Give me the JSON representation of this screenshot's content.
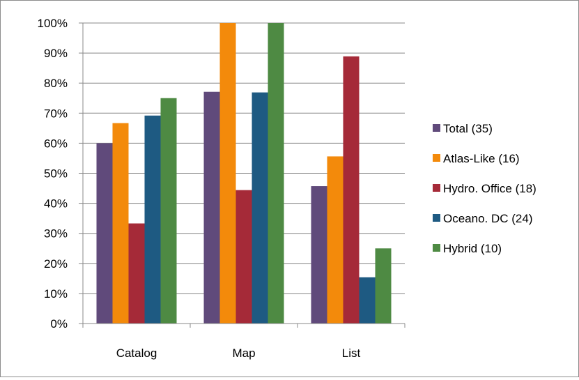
{
  "chart_data": {
    "type": "bar",
    "title": "",
    "xlabel": "",
    "ylabel": "",
    "categories": [
      "Catalog",
      "Map",
      "List"
    ],
    "ylim": [
      0,
      100
    ],
    "y_ticks": [
      "0%",
      "10%",
      "20%",
      "30%",
      "40%",
      "50%",
      "60%",
      "70%",
      "80%",
      "90%",
      "100%"
    ],
    "grid": true,
    "legend_position": "right",
    "series": [
      {
        "name": "Total (35)",
        "color": "#604a7b",
        "values": [
          60,
          77.1,
          45.7
        ]
      },
      {
        "name": "Atlas-Like (16)",
        "color": "#f38a0b",
        "values": [
          66.7,
          100,
          55.6
        ]
      },
      {
        "name": "Hydro. Office (18)",
        "color": "#a52a38",
        "values": [
          33.3,
          44.4,
          88.9
        ]
      },
      {
        "name": "Oceano. DC (24)",
        "color": "#1e5a82",
        "values": [
          69.2,
          76.9,
          15.4
        ]
      },
      {
        "name": "Hybrid (10)",
        "color": "#4e8a43",
        "values": [
          75,
          100,
          25
        ]
      }
    ]
  }
}
